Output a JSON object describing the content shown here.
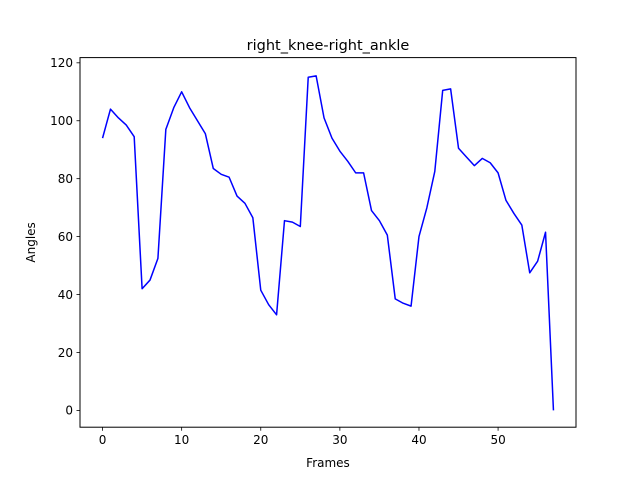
{
  "chart_data": {
    "type": "line",
    "title": "right_knee-right_ankle",
    "xlabel": "Frames",
    "ylabel": "Angles",
    "xlim": [
      -2.85,
      59.85
    ],
    "ylim": [
      -5.8,
      121.8
    ],
    "xticks": [
      0,
      10,
      20,
      30,
      40,
      50
    ],
    "yticks": [
      0,
      20,
      40,
      60,
      80,
      100,
      120
    ],
    "grid": false,
    "series": [
      {
        "name": "right_knee-right_ankle",
        "color": "#0000ff",
        "x": [
          0,
          1,
          2,
          3,
          4,
          5,
          6,
          7,
          8,
          9,
          10,
          11,
          12,
          13,
          14,
          15,
          16,
          17,
          18,
          19,
          20,
          21,
          22,
          23,
          24,
          25,
          26,
          27,
          28,
          29,
          30,
          31,
          32,
          33,
          34,
          35,
          36,
          37,
          38,
          39,
          40,
          41,
          42,
          43,
          44,
          45,
          46,
          47,
          48,
          49,
          50,
          51,
          52,
          53,
          54,
          55,
          56,
          57
        ],
        "values": [
          94,
          104,
          101,
          98.5,
          94.5,
          42,
          45,
          52.5,
          97,
          104.5,
          110,
          104.5,
          100,
          95.5,
          83.5,
          81.5,
          80.5,
          74,
          71.5,
          66.5,
          41.5,
          36.5,
          33,
          65.5,
          65,
          63.5,
          115,
          115.5,
          101,
          94,
          89.5,
          86,
          82,
          82,
          69,
          65.5,
          60.5,
          38.5,
          37,
          36,
          60,
          70,
          82.5,
          110.5,
          111,
          90.5,
          87.5,
          84.5,
          87,
          85.5,
          82,
          72.5,
          68,
          64,
          47.5,
          51.5,
          61.5,
          0
        ]
      }
    ]
  }
}
